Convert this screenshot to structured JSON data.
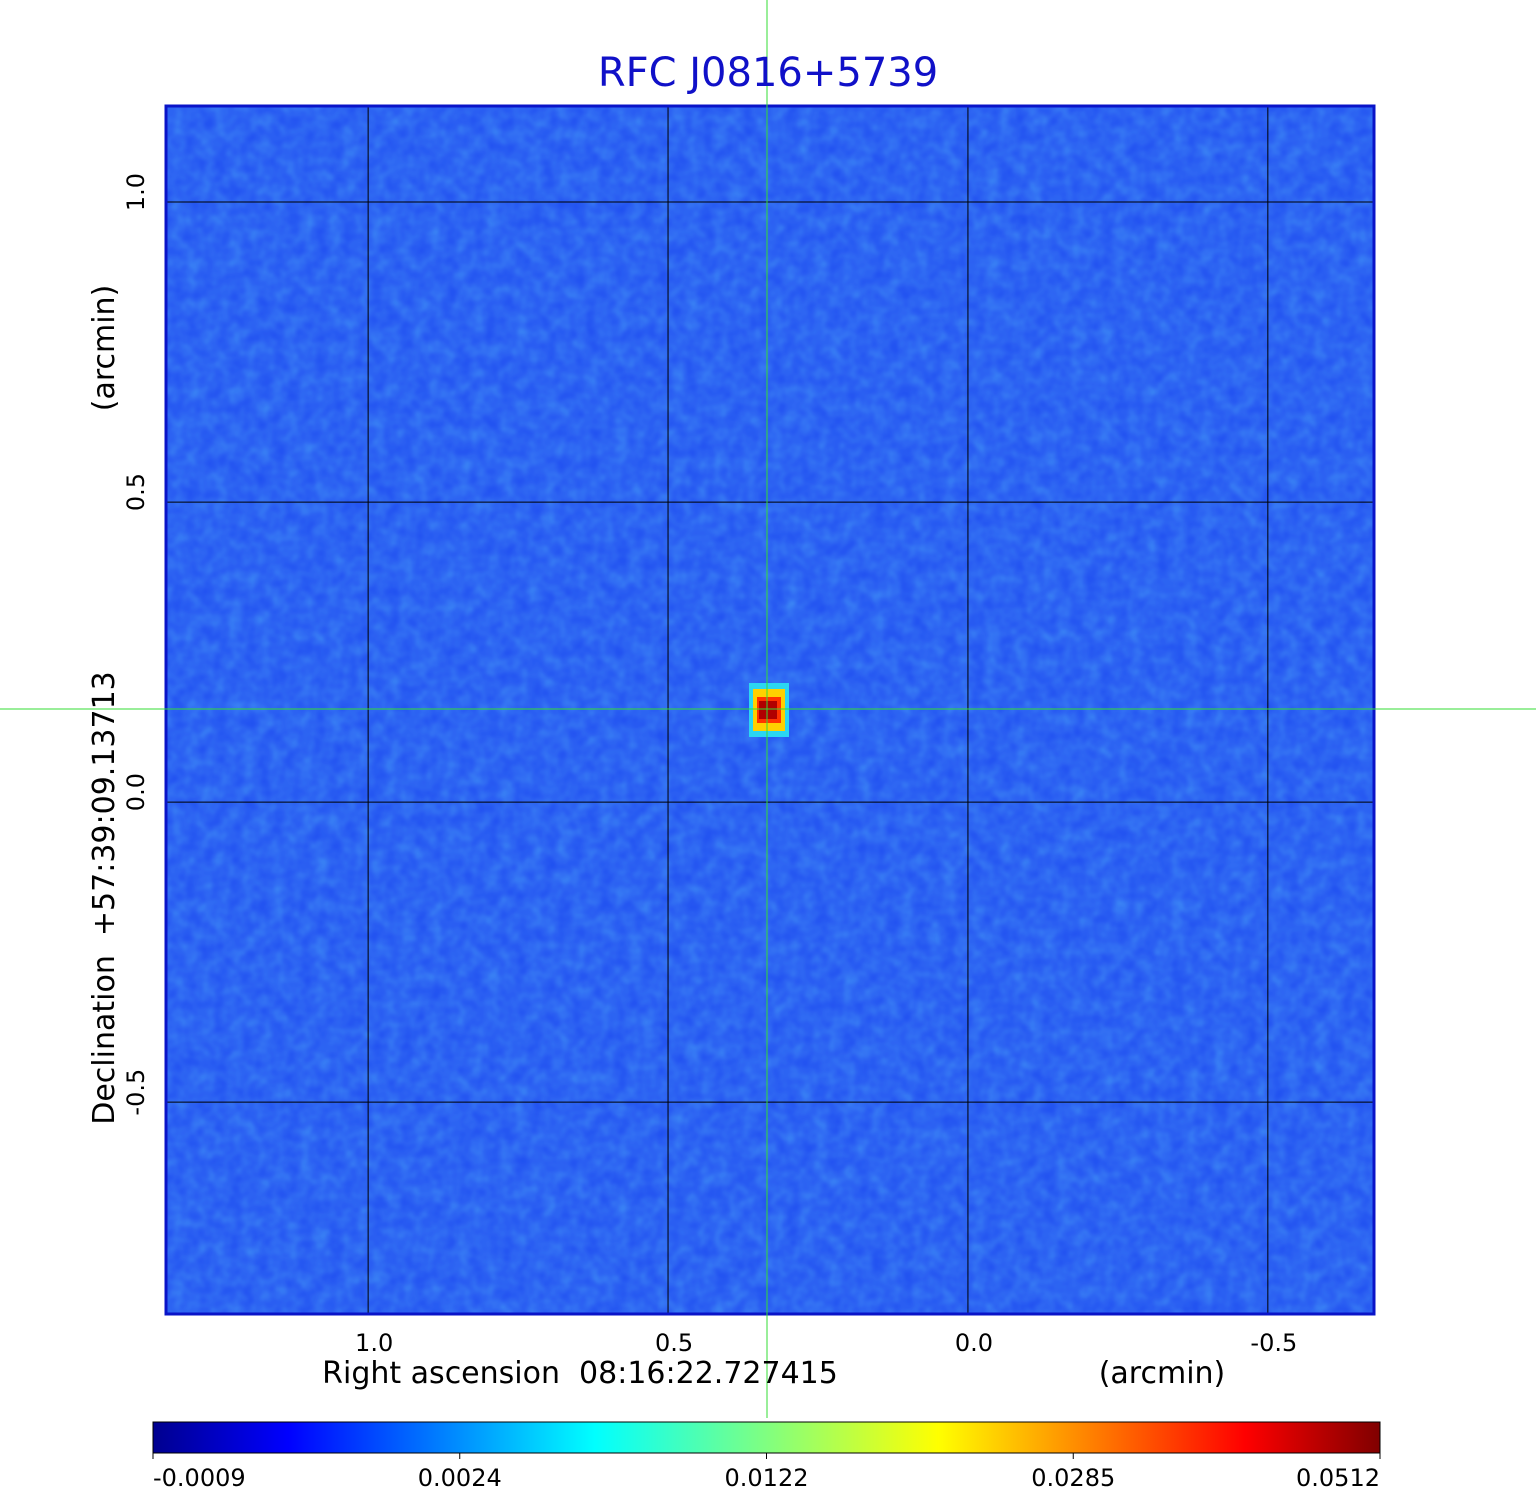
{
  "chart_data": {
    "type": "image",
    "title": "RFC J0816+5739",
    "x_label": "Right ascension  08:16:22.727415",
    "x_unit": "(arcmin)",
    "y_label": "Declination  +57:39:09.13713",
    "y_unit": "(arcmin)",
    "xlim": [
      1.337,
      -0.677
    ],
    "ylim": [
      -0.853,
      1.16
    ],
    "xticks": [
      {
        "value": 1,
        "label": "1.0"
      },
      0.5,
      {
        "value": 0,
        "label": "0.0"
      },
      -0.5
    ],
    "yticks": [
      {
        "value": 1,
        "label": "1.0"
      },
      0.5,
      {
        "value": 0,
        "label": "0.0"
      },
      -0.5
    ],
    "grid": true,
    "colormap": "jet",
    "colorbar_ticks": [
      -0.0009,
      0.0024,
      0.0122,
      0.0285,
      0.0512
    ]
  }
}
